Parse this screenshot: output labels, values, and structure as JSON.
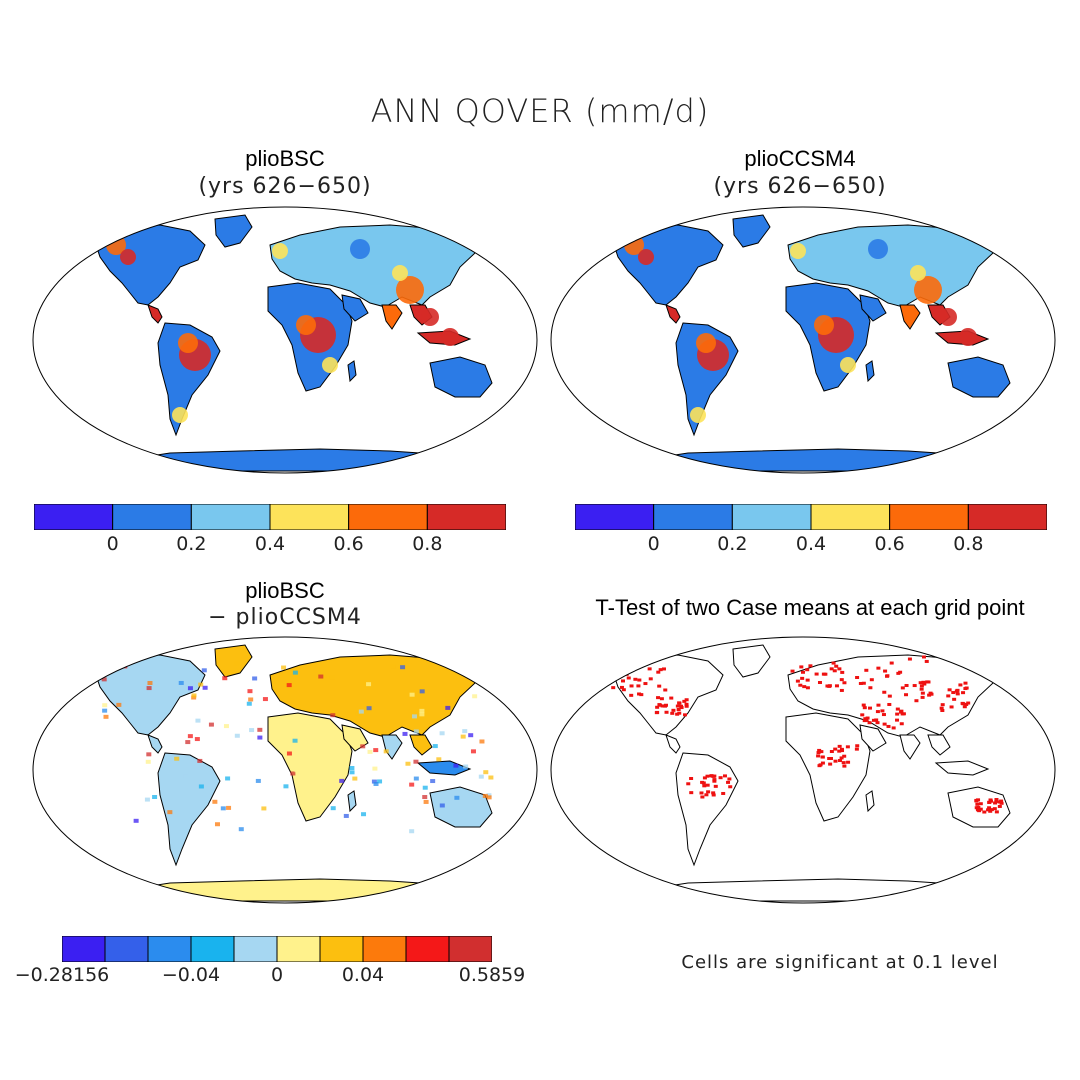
{
  "main_title": "ANN QOVER (mm/d)",
  "panels": [
    {
      "id": "top-left",
      "title": "plioBSC",
      "subtitle": "(yrs 626−650)"
    },
    {
      "id": "top-right",
      "title": "plioCCSM4",
      "subtitle": "(yrs 626−650)"
    },
    {
      "id": "bottom-left",
      "title": "plioBSC",
      "subtitle": "− plioCCSM4"
    },
    {
      "id": "bottom-right",
      "title": "T-Test of two Case means at each grid point",
      "subtitle": ""
    }
  ],
  "colorbars": {
    "absolute": {
      "colors": [
        "#3b1ff2",
        "#2b7be6",
        "#79c7ee",
        "#fde35a",
        "#fc6a0a",
        "#d62a27"
      ],
      "tick_labels": [
        "0",
        "0.2",
        "0.4",
        "0.6",
        "0.8"
      ]
    },
    "difference": {
      "colors": [
        "#3b1ff2",
        "#3460ea",
        "#2b8cee",
        "#19b3ee",
        "#a6d7f2",
        "#fff28c",
        "#fcbf0f",
        "#fc7a0c",
        "#f41818",
        "#d12f2f"
      ],
      "tick_labels": [
        "−0.28156",
        "−0.04",
        "0",
        "0.04",
        "0.5859"
      ]
    }
  },
  "significance_note": "Cells are significant at 0.1 level",
  "colors": {
    "significant": "#ee1111",
    "land_outline": "#000000",
    "ocean": "#ffffff"
  }
}
